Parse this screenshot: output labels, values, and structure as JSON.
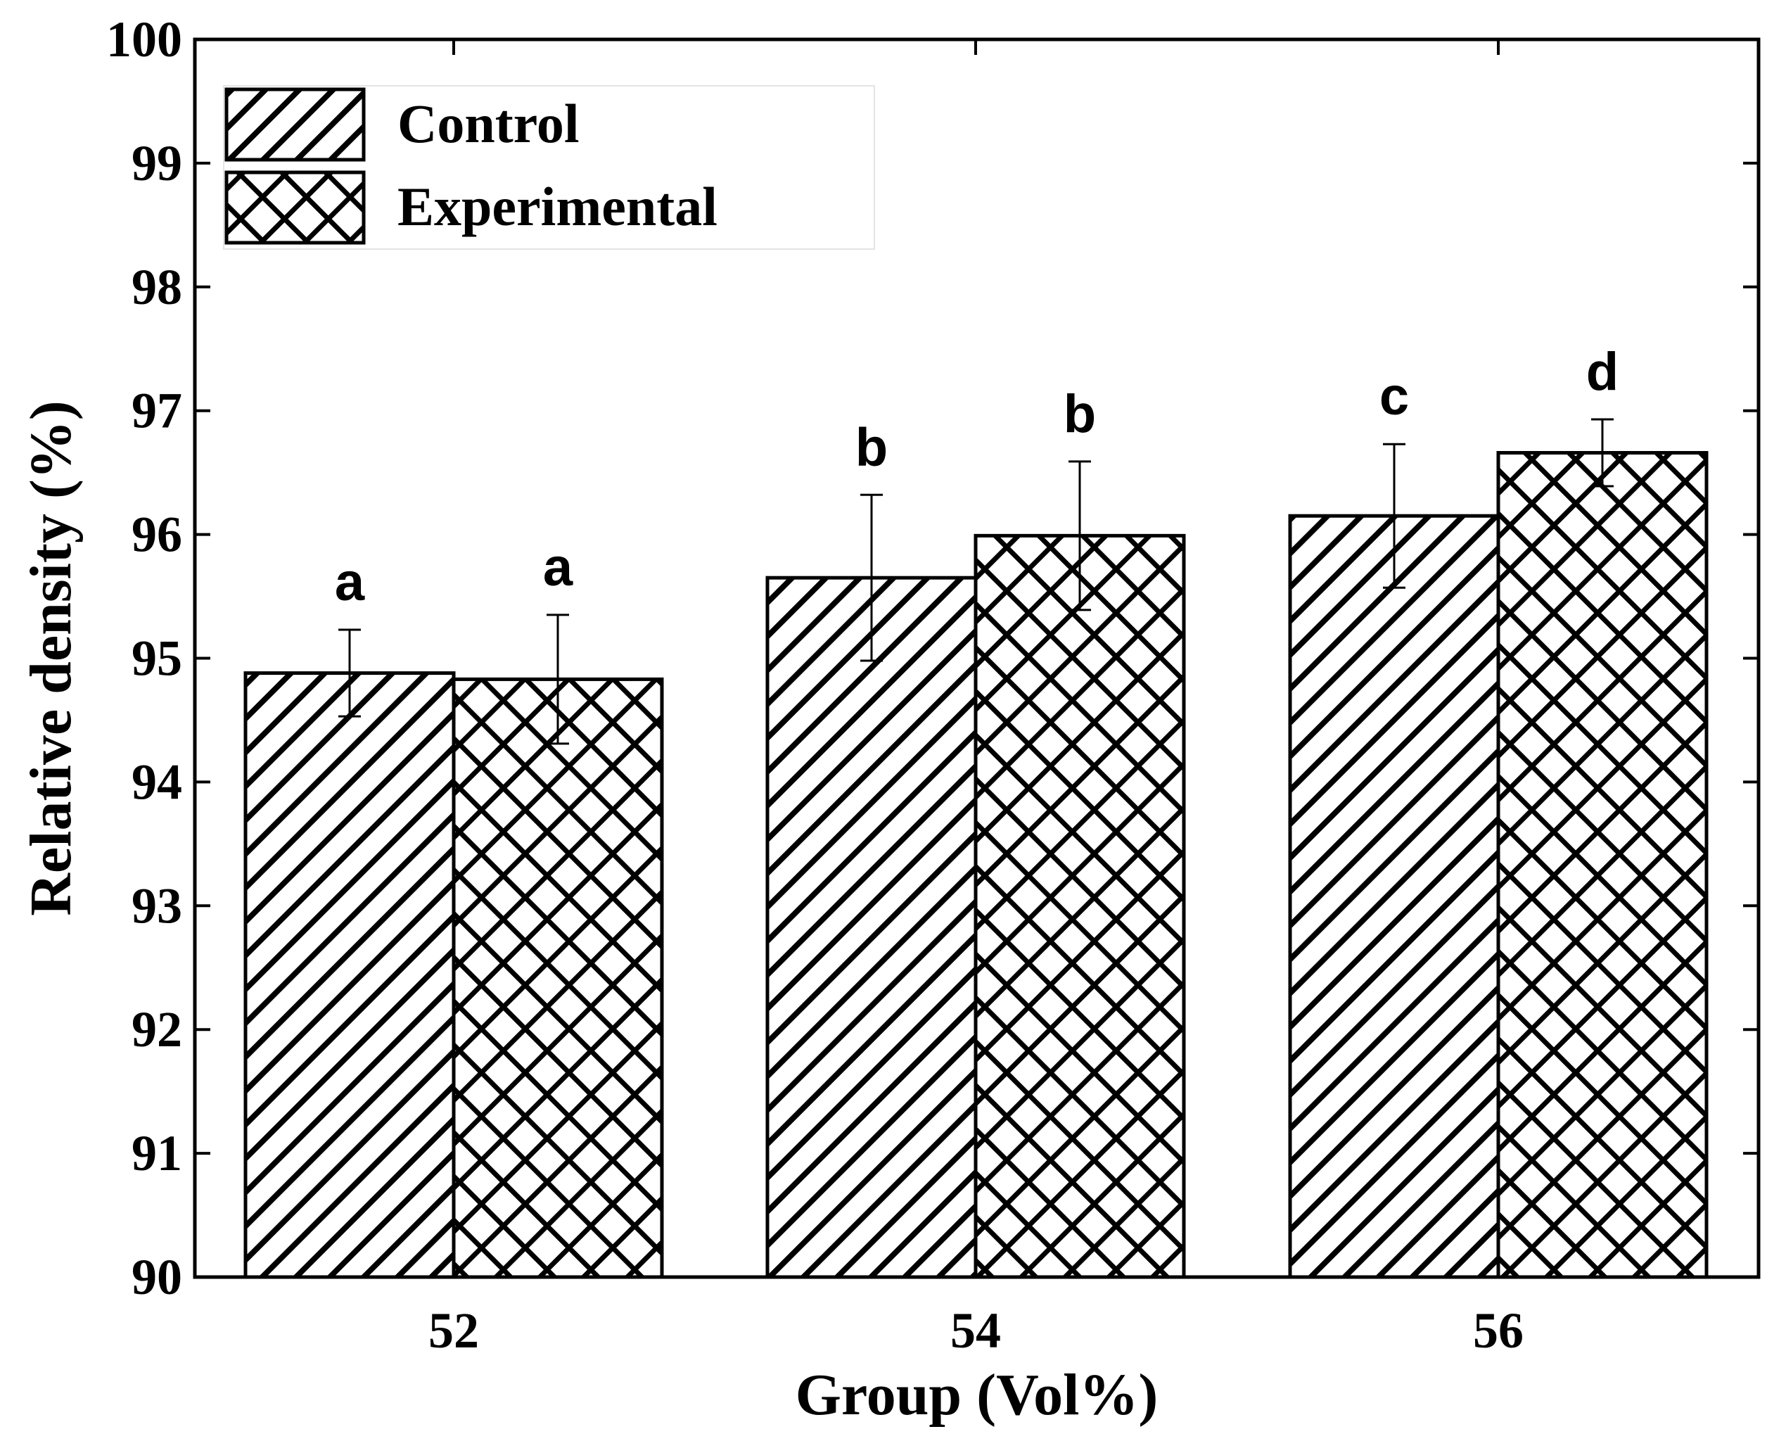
{
  "chart_data": {
    "type": "bar",
    "title": "",
    "xlabel": "Group (Vol%)",
    "ylabel": "Relative density (%)",
    "ylim": [
      90,
      100
    ],
    "yticks": [
      "90",
      "91",
      "92",
      "93",
      "94",
      "95",
      "96",
      "97",
      "98",
      "99",
      "100"
    ],
    "categories": [
      "52",
      "54",
      "56"
    ],
    "series": [
      {
        "name": "Control",
        "pattern": "diagonal-hatch",
        "values": [
          94.88,
          95.65,
          96.15
        ],
        "errors": [
          0.35,
          0.67,
          0.58
        ],
        "labels": [
          "a",
          "b",
          "c"
        ]
      },
      {
        "name": "Experimental",
        "pattern": "cross-hatch",
        "values": [
          94.83,
          95.99,
          96.66
        ],
        "errors": [
          0.52,
          0.6,
          0.27
        ],
        "labels": [
          "a",
          "b",
          "d"
        ]
      }
    ],
    "legend_position": "top-left",
    "colors": {
      "bar_fill": "#ffffff",
      "stroke": "#000000",
      "background": "#ffffff"
    }
  }
}
